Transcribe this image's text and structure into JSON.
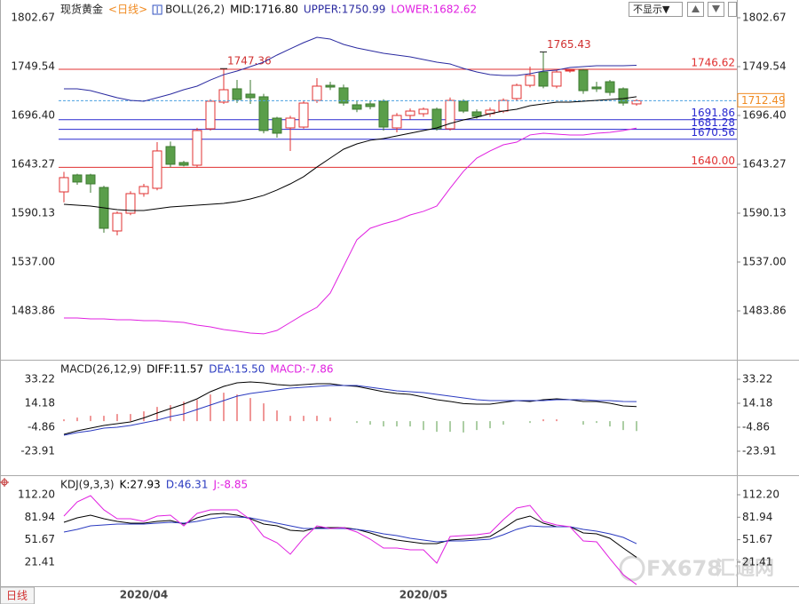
{
  "toolbar": {
    "dropdown": "不显示▼"
  },
  "period_tab": "日线",
  "watermark": [
    "FX678",
    "汇通网"
  ],
  "chart_data": [
    {
      "type": "candlestick",
      "title": "现货黄金",
      "subtitle": "<日线>",
      "indicator": "BOLL(26,2)",
      "categories": [
        null,
        null,
        null,
        null,
        null,
        null,
        "2020/04",
        null,
        null,
        null,
        null,
        null,
        null,
        null,
        null,
        null,
        null,
        null,
        null,
        null,
        null,
        null,
        null,
        null,
        null,
        null,
        null,
        "2020/05",
        null,
        null,
        null,
        null,
        null,
        null,
        null,
        null,
        null,
        null,
        null,
        null,
        null,
        null,
        null,
        null
      ],
      "open": [
        1613.3,
        1631.7,
        1631.7,
        1618.1,
        1570.8,
        1590.1,
        1611.4,
        1617.2,
        1662.6,
        1645.2,
        1642.3,
        1681.9,
        1710.9,
        1725.4,
        1719.6,
        1716.7,
        1693.5,
        1682.9,
        1683.8,
        1712.8,
        1729.2,
        1726.4,
        1708.0,
        1709.0,
        1711.9,
        1682.9,
        1696.4,
        1698.3,
        1703.2,
        1681.9,
        1711.9,
        1700.3,
        1698.3,
        1701.2,
        1714.8,
        1729.2,
        1743.7,
        1728.3,
        1744.7,
        1745.7,
        1727.3,
        1733.1,
        1725.4,
        1709.0
      ],
      "close": [
        1628.8,
        1624.0,
        1622.0,
        1573.7,
        1590.1,
        1611.4,
        1619.1,
        1657.8,
        1643.3,
        1642.3,
        1680.0,
        1711.9,
        1724.4,
        1713.8,
        1715.7,
        1680.0,
        1677.1,
        1693.5,
        1709.9,
        1728.3,
        1727.3,
        1709.9,
        1703.2,
        1706.1,
        1683.8,
        1696.4,
        1701.2,
        1703.2,
        1681.9,
        1712.8,
        1701.2,
        1695.4,
        1702.2,
        1712.8,
        1729.2,
        1739.9,
        1728.3,
        1743.7,
        1745.7,
        1723.4,
        1725.4,
        1721.5,
        1709.9,
        1712.49
      ],
      "low": [
        1602,
        1621,
        1612.4,
        1568.9,
        1566.0,
        1588,
        1608,
        1615,
        1640,
        1641,
        1640,
        1680,
        1709,
        1710,
        1709,
        1677,
        1672.2,
        1657.8,
        1682,
        1710,
        1724,
        1707,
        1700,
        1703,
        1680,
        1678,
        1692,
        1695,
        1680,
        1680,
        1699,
        1693,
        1695,
        1699,
        1712,
        1727,
        1726,
        1726,
        1743,
        1720,
        1722,
        1718,
        1707,
        1707
      ],
      "high": [
        1635,
        1633,
        1633,
        1620,
        1592,
        1614,
        1622,
        1667.4,
        1668,
        1647,
        1683,
        1714,
        1747.36,
        1735,
        1735,
        1720,
        1695,
        1696,
        1712,
        1737.0,
        1733,
        1730,
        1712,
        1712,
        1714,
        1699,
        1704,
        1705,
        1705,
        1716,
        1714,
        1703,
        1705,
        1715,
        1731,
        1749.5,
        1765.43,
        1746,
        1747,
        1747,
        1733,
        1735,
        1727,
        1714
      ],
      "up_color": "#e03030",
      "down_color": "#5a9e4a",
      "last_color": "#f08a20",
      "annotations": [
        1747.36,
        1765.43
      ],
      "series": [
        {
          "name": "MID:1716.80",
          "color": "#000000",
          "values": [
            1599.8,
            1598.8,
            1597.9,
            1595.9,
            1594.0,
            1593.0,
            1593.0,
            1595.0,
            1596.9,
            1597.9,
            1598.8,
            1599.8,
            1600.8,
            1602.7,
            1605.6,
            1609.5,
            1615.3,
            1622.0,
            1629.8,
            1640.3,
            1650.0,
            1659.7,
            1665.5,
            1669.4,
            1671.3,
            1674.2,
            1677.1,
            1680.0,
            1682.9,
            1687.7,
            1691.6,
            1694.5,
            1698.3,
            1701.2,
            1703.2,
            1707.0,
            1709.0,
            1710.9,
            1710.9,
            1711.9,
            1712.8,
            1713.8,
            1714.8,
            1716.8
          ]
        },
        {
          "name": "UPPER:1750.99",
          "color": "#2a2aa0",
          "values": [
            1725.4,
            1725.4,
            1723.4,
            1719.6,
            1715.7,
            1712.8,
            1711.9,
            1715.7,
            1719.6,
            1724.4,
            1728.3,
            1735.0,
            1740.8,
            1744.7,
            1749.5,
            1754.4,
            1762.1,
            1768.9,
            1775.6,
            1781.4,
            1779.5,
            1773.7,
            1769.8,
            1766.9,
            1764.0,
            1762.1,
            1760.2,
            1757.3,
            1754.4,
            1752.4,
            1747.6,
            1743.7,
            1740.8,
            1739.9,
            1739.9,
            1741.8,
            1744.7,
            1745.7,
            1748.6,
            1749.5,
            1750.5,
            1750.5,
            1750.5,
            1750.99
          ]
        },
        {
          "name": "LOWER:1682.62",
          "color": "#e020e0",
          "values": [
            1476.1,
            1476.1,
            1475.2,
            1475.2,
            1474.2,
            1474.2,
            1473.2,
            1473.2,
            1472.3,
            1471.3,
            1468.4,
            1466.5,
            1463.6,
            1461.7,
            1459.7,
            1458.8,
            1462.6,
            1471.3,
            1480.0,
            1487.7,
            1503.2,
            1532.2,
            1561.2,
            1573.7,
            1578.5,
            1582.4,
            1588.2,
            1592.1,
            1597.9,
            1617.2,
            1635.6,
            1650.0,
            1657.8,
            1664.5,
            1667.4,
            1675.2,
            1677.1,
            1676.1,
            1675.2,
            1675.2,
            1677.1,
            1678.0,
            1680.0,
            1682.62
          ]
        }
      ],
      "levels": [
        {
          "value": 1746.62,
          "color": "#e03030"
        },
        {
          "value": 1691.86,
          "color": "#2a2ad0"
        },
        {
          "value": 1681.28,
          "color": "#2a2ad0"
        },
        {
          "value": 1670.56,
          "color": "#2a2ad0"
        },
        {
          "value": 1640,
          "label": "1640.00",
          "color": "#e03030"
        }
      ],
      "ylim": [
        1430.72,
        1819.09
      ],
      "yticks": [
        1802.67,
        1749.54,
        {
          "value": 1696.4,
          "label": "1696.40"
        },
        1643.27,
        1590.13,
        {
          "value": 1537,
          "label": "1537.00"
        },
        1483.86
      ],
      "grid": false
    },
    {
      "type": "macd",
      "title": "MACD(26,12,9)",
      "series": [
        {
          "name": "DIFF:11.57",
          "color": "#000000",
          "values": [
            -10.49,
            -7.67,
            -5.56,
            -3.44,
            -2.03,
            -0.62,
            2.54,
            6.43,
            9.96,
            13.48,
            17.71,
            23.35,
            27.58,
            30.4,
            31.11,
            30.4,
            28.99,
            28.29,
            28.99,
            29.7,
            29.7,
            28.29,
            27.58,
            25.47,
            23.35,
            21.94,
            21.24,
            19.12,
            17.01,
            15.6,
            13.92,
            13.48,
            13.48,
            14.89,
            16.3,
            15.6,
            17.01,
            17.71,
            17.01,
            15.6,
            15.6,
            14.18,
            12.07,
            11.57
          ]
        },
        {
          "name": "DEA:15.50",
          "color": "#2a3ac0",
          "values": [
            -11.2,
            -9.08,
            -7.67,
            -5.56,
            -4.85,
            -3.44,
            -1.33,
            0.79,
            3.61,
            5.72,
            9.25,
            12.77,
            16.3,
            19.83,
            21.94,
            23.35,
            24.76,
            26.17,
            26.87,
            27.58,
            28.29,
            28.29,
            28.29,
            26.87,
            25.47,
            24.06,
            23.35,
            22.65,
            21.24,
            19.83,
            18.41,
            17.01,
            16.3,
            16.3,
            16.3,
            16.3,
            16.3,
            17.01,
            17.01,
            17.01,
            16.3,
            16.3,
            15.6,
            15.5
          ]
        }
      ],
      "histogram": {
        "name": "MACD:-7.86",
        "color": "#e020e0",
        "up_color": "#e03030",
        "down_color": "#5a9e4a",
        "values": [
          1.42,
          2.82,
          4.22,
          4.24,
          5.64,
          5.64,
          7.74,
          11.28,
          12.7,
          15.52,
          16.92,
          21.16,
          22.56,
          21.14,
          18.34,
          14.1,
          8.46,
          4.24,
          4.24,
          4.24,
          2.82,
          0,
          -1.42,
          -2.8,
          -4.24,
          -4.24,
          -4.22,
          -7.06,
          -8.46,
          -8.46,
          -8.98,
          -7.06,
          -5.64,
          -2.82,
          0,
          -1.4,
          1.42,
          1.4,
          0,
          -2.82,
          -1.4,
          -4.24,
          -7.06,
          -7.86
        ]
      },
      "ylim": [
        -42.95,
        46.62
      ],
      "yticks": [
        33.22,
        14.18,
        -4.86,
        -23.91
      ],
      "grid": false
    },
    {
      "type": "line",
      "title": "KDJ(9,3,3)",
      "series": [
        {
          "name": "K:27.93",
          "color": "#000000",
          "values": [
            75.1,
            81.1,
            84.7,
            79.9,
            76.3,
            73.9,
            73.9,
            76.3,
            77.5,
            72.7,
            81.1,
            85.9,
            87.1,
            84.7,
            79.9,
            72.7,
            70.3,
            64.4,
            63.2,
            67.9,
            67.9,
            67.9,
            65.6,
            60.8,
            54.8,
            51.2,
            48.8,
            46.4,
            46.4,
            51.2,
            52.4,
            53.6,
            56.0,
            66.8,
            78.7,
            83.5,
            73.9,
            69.1,
            69.1,
            60.8,
            59.6,
            53.6,
            40.4,
            27.93
          ]
        },
        {
          "name": "D:46.31",
          "color": "#2a3ac0",
          "values": [
            62.0,
            65.6,
            70.3,
            71.5,
            72.7,
            72.7,
            72.7,
            73.9,
            75.1,
            73.9,
            76.3,
            79.9,
            82.3,
            82.3,
            81.1,
            77.5,
            73.9,
            70.3,
            66.8,
            66.8,
            66.8,
            66.8,
            65.6,
            63.2,
            59.6,
            57.2,
            53.6,
            51.2,
            48.8,
            50.0,
            50.0,
            51.2,
            52.4,
            58.4,
            65.6,
            70.3,
            69.1,
            69.1,
            69.1,
            65.6,
            63.2,
            59.6,
            54.8,
            46.31
          ]
        },
        {
          "name": "J:-8.85",
          "color": "#e020e0",
          "values": [
            83.5,
            102.6,
            111.0,
            91.9,
            79.9,
            79.9,
            76.3,
            83.5,
            84.7,
            70.3,
            87.1,
            91.9,
            91.9,
            91.9,
            78.7,
            56.0,
            47.6,
            32.1,
            53.6,
            70.3,
            66.8,
            67.9,
            62.0,
            52.4,
            40.4,
            40.4,
            38.0,
            38.0,
            20.1,
            56.0,
            57.2,
            58.4,
            60.8,
            78.7,
            94.3,
            97.8,
            76.3,
            71.5,
            69.1,
            50.0,
            48.8,
            26.1,
            4.6,
            -8.85
          ]
        }
      ],
      "ylim": [
        -10.99,
        134.92
      ],
      "yticks": [
        {
          "value": 112.2,
          "label": "112.20"
        },
        81.94,
        51.67,
        21.41
      ],
      "grid": false
    }
  ]
}
